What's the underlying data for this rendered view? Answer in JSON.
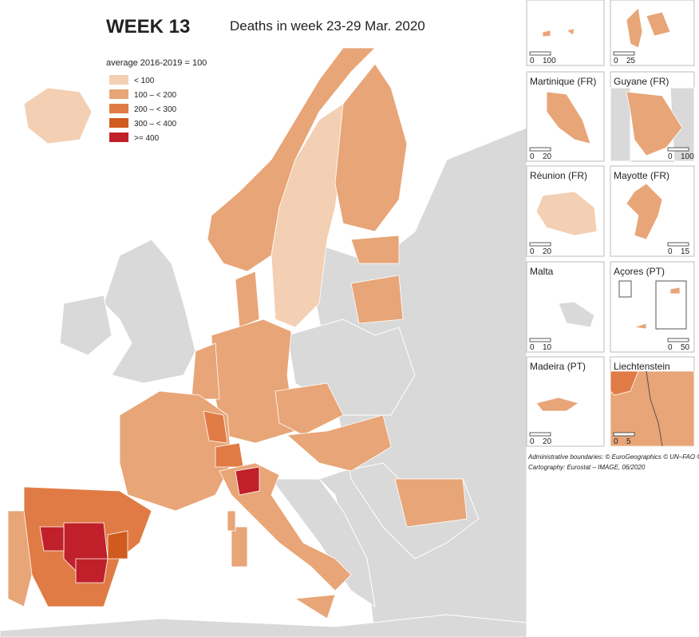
{
  "title": "WEEK 13",
  "subtitle": "Deaths in week 23-29 Mar. 2020",
  "legend": {
    "title": "average 2016-2019 = 100",
    "items": [
      {
        "label": "< 100",
        "color": "#f3cfb3"
      },
      {
        "label": "100 – < 200",
        "color": "#e8a577"
      },
      {
        "label": "200 – < 300",
        "color": "#e07b45"
      },
      {
        "label": "300 – < 400",
        "color": "#cf5b1f"
      },
      {
        "label": ">= 400",
        "color": "#c0202a"
      }
    ]
  },
  "insets": [
    {
      "scale": [
        0,
        100
      ]
    },
    {
      "scale": [
        0,
        25
      ]
    },
    {
      "title": "Martinique (FR)",
      "scale": [
        0,
        20
      ]
    },
    {
      "title": "Guyane (FR)",
      "scale": [
        0,
        100
      ]
    },
    {
      "title": "Réunion (FR)",
      "scale": [
        0,
        20
      ]
    },
    {
      "title": "Mayotte (FR)",
      "scale": [
        0,
        15
      ]
    },
    {
      "title": "Malta",
      "scale": [
        0,
        10
      ]
    },
    {
      "title": "Açores (PT)",
      "scale": [
        0,
        50
      ]
    },
    {
      "title": "Madeira (PT)",
      "scale": [
        0,
        20
      ]
    },
    {
      "title": "Liechtenstein",
      "scale": [
        0,
        5
      ]
    }
  ],
  "credits": [
    "Administrative boundaries: © EuroGeographics © UN–FAO © Turkstat",
    "Cartography: Eurostat – IMAGE, 06/2020"
  ]
}
